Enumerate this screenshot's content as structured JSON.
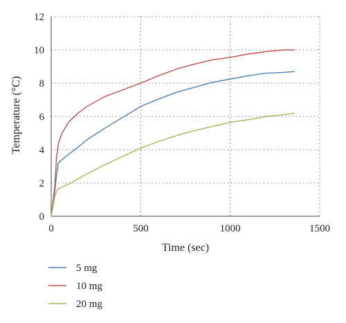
{
  "chart_data": {
    "type": "line",
    "xlabel": "Time (sec)",
    "ylabel": "Temperature (°C)",
    "xlim": [
      0,
      1500
    ],
    "ylim": [
      0,
      12
    ],
    "xticks": [
      "0",
      "500",
      "1000",
      "1500"
    ],
    "yticks": [
      "0",
      "2",
      "4",
      "6",
      "8",
      "10",
      "12"
    ],
    "grid": "dotted",
    "legend_position": "bottom-left",
    "series": [
      {
        "name": "5 mg",
        "color": "#4a7ebb",
        "x": [
          0,
          10,
          20,
          30,
          40,
          60,
          100,
          150,
          200,
          300,
          400,
          500,
          600,
          700,
          800,
          900,
          1000,
          1100,
          1200,
          1300,
          1360
        ],
        "y": [
          0,
          0.8,
          1.5,
          2.5,
          3.2,
          3.4,
          3.75,
          4.15,
          4.6,
          5.3,
          5.95,
          6.6,
          7.05,
          7.45,
          7.75,
          8.05,
          8.25,
          8.45,
          8.6,
          8.65,
          8.7
        ]
      },
      {
        "name": "10 mg",
        "color": "#c0504d",
        "x": [
          0,
          10,
          20,
          30,
          40,
          60,
          100,
          150,
          200,
          300,
          400,
          500,
          600,
          700,
          800,
          900,
          1000,
          1100,
          1200,
          1300,
          1360
        ],
        "y": [
          0,
          0.9,
          1.8,
          3.6,
          4.35,
          5.0,
          5.7,
          6.2,
          6.6,
          7.2,
          7.6,
          8.0,
          8.45,
          8.85,
          9.15,
          9.4,
          9.55,
          9.75,
          9.9,
          10.0,
          10.0
        ]
      },
      {
        "name": "20 mg",
        "color": "#9bbb59",
        "x": [
          0,
          10,
          20,
          30,
          40,
          60,
          100,
          150,
          200,
          300,
          400,
          500,
          600,
          700,
          800,
          900,
          1000,
          1100,
          1200,
          1300,
          1360
        ],
        "y": [
          0,
          0.6,
          1.2,
          1.5,
          1.65,
          1.75,
          1.95,
          2.25,
          2.55,
          3.1,
          3.6,
          4.1,
          4.5,
          4.85,
          5.15,
          5.4,
          5.65,
          5.8,
          6.0,
          6.1,
          6.2
        ]
      }
    ]
  }
}
